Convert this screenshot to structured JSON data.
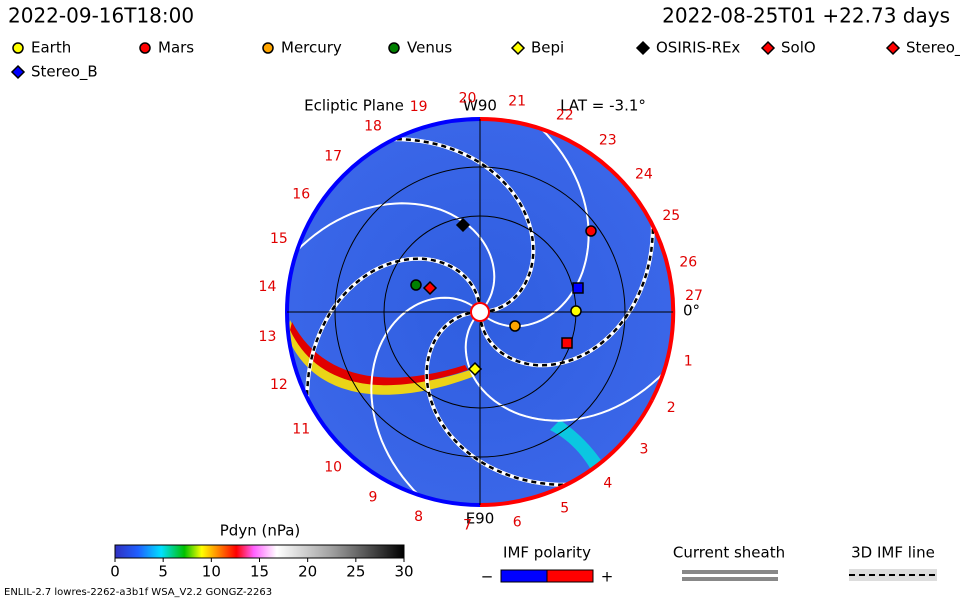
{
  "header": {
    "date": "2022-09-16T18:00",
    "run": "2022-08-25T01 +22.73 days"
  },
  "legend": [
    {
      "label": "Earth",
      "color": "#ffff00",
      "shape": "circle"
    },
    {
      "label": "Mars",
      "color": "#ff0000",
      "shape": "circle"
    },
    {
      "label": "Mercury",
      "color": "#ffa500",
      "shape": "circle"
    },
    {
      "label": "Venus",
      "color": "#008000",
      "shape": "circle"
    },
    {
      "label": "Bepi",
      "color": "#ffff00",
      "shape": "diamond"
    },
    {
      "label": "OSIRIS-REx",
      "color": "#000000",
      "shape": "diamond"
    },
    {
      "label": "SolO",
      "color": "#ff0000",
      "shape": "diamond"
    },
    {
      "label": "Stereo_",
      "color": "#ff0000",
      "shape": "diamond"
    },
    {
      "label": "Stereo_B",
      "color": "#0000ff",
      "shape": "diamond"
    }
  ],
  "plot": {
    "plane": "Ecliptic Plane",
    "top_label": "W90",
    "bottom_label": "E90",
    "lat": "LAT = -3.1°",
    "zero": "0°",
    "sectors": [
      "1",
      "2",
      "3",
      "4",
      "5",
      "6",
      "7",
      "8",
      "9",
      "10",
      "11",
      "12",
      "13",
      "14",
      "15",
      "16",
      "17",
      "18",
      "19",
      "20",
      "21",
      "22",
      "23",
      "24",
      "25",
      "26",
      "27"
    ]
  },
  "colorbar": {
    "title": "Pdyn (nPa)",
    "range": [
      0,
      30
    ],
    "ticks": [
      0,
      5,
      10,
      15,
      20,
      25,
      30
    ]
  },
  "imf": {
    "title": "IMF polarity",
    "minus": "−",
    "plus": "+"
  },
  "sheath": "Current sheath",
  "imf_line": "3D IMF line",
  "footer": "ENLIL-2.7 lowres-2262-a3b1f WSA_V2.2 GONGZ-2263"
}
